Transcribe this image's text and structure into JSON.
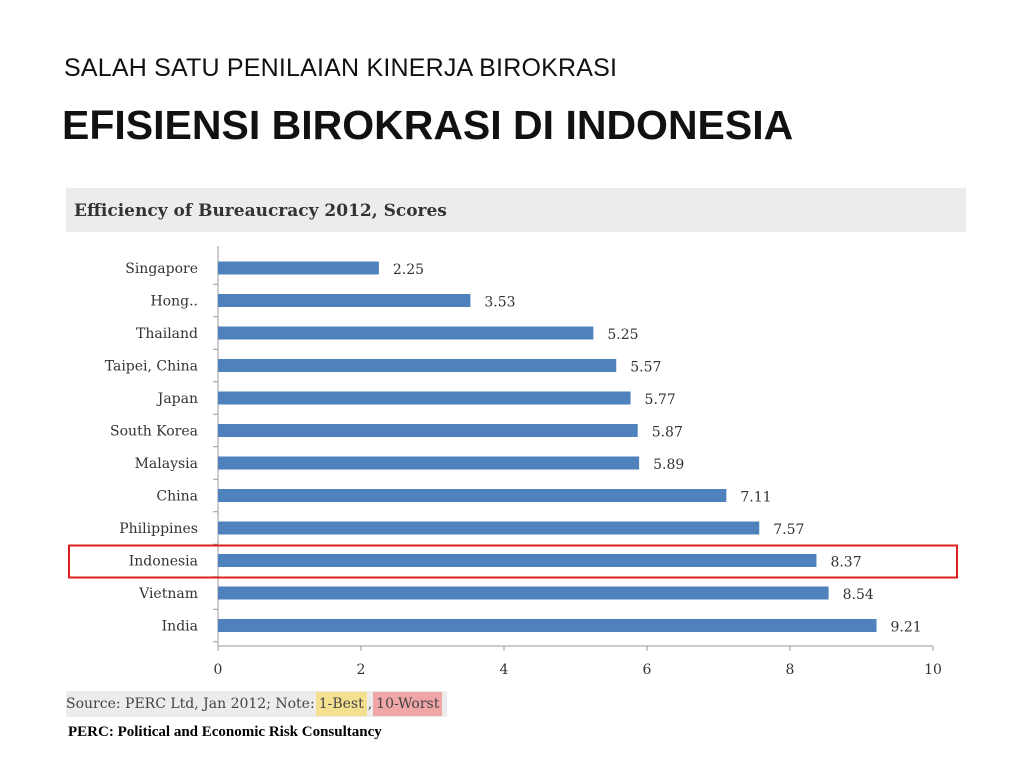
{
  "slide": {
    "subtitle": "SALAH SATU PENILAIAN KINERJA BIROKRASI",
    "title": "EFISIENSI BIROKRASI DI INDONESIA"
  },
  "chart_data": {
    "type": "bar",
    "orientation": "horizontal",
    "title": "Efficiency of Bureaucracy 2012, Scores",
    "categories": [
      "Singapore",
      "Hong..",
      "Thailand",
      "Taipei, China",
      "Japan",
      "South Korea",
      "Malaysia",
      "China",
      "Philippines",
      "Indonesia",
      "Vietnam",
      "India"
    ],
    "values": [
      2.25,
      3.53,
      5.25,
      5.57,
      5.77,
      5.87,
      5.89,
      7.11,
      7.57,
      8.37,
      8.54,
      9.21
    ],
    "value_labels": [
      "2.25",
      "3.53",
      "5.25",
      "5.57",
      "5.77",
      "5.87",
      "5.89",
      "7.11",
      "7.57",
      "8.37",
      "8.54",
      "9.21"
    ],
    "xlim": [
      0,
      10
    ],
    "xticks": [
      "0",
      "2",
      "4",
      "6",
      "8",
      "10"
    ],
    "xlabel": "",
    "ylabel": "",
    "grid": false,
    "highlighted_category": "Indonesia",
    "bar_color": "#4f81bd",
    "highlight_color": "#e02020"
  },
  "source": {
    "prefix": "Source: PERC Ltd, Jan 2012; Note:",
    "best": "1-Best",
    "separator": ",",
    "worst": "10-Worst",
    "best_color": "#f4e08e",
    "worst_color": "#f0a6a6"
  },
  "footnote": "PERC: Political and Economic Risk Consultancy"
}
